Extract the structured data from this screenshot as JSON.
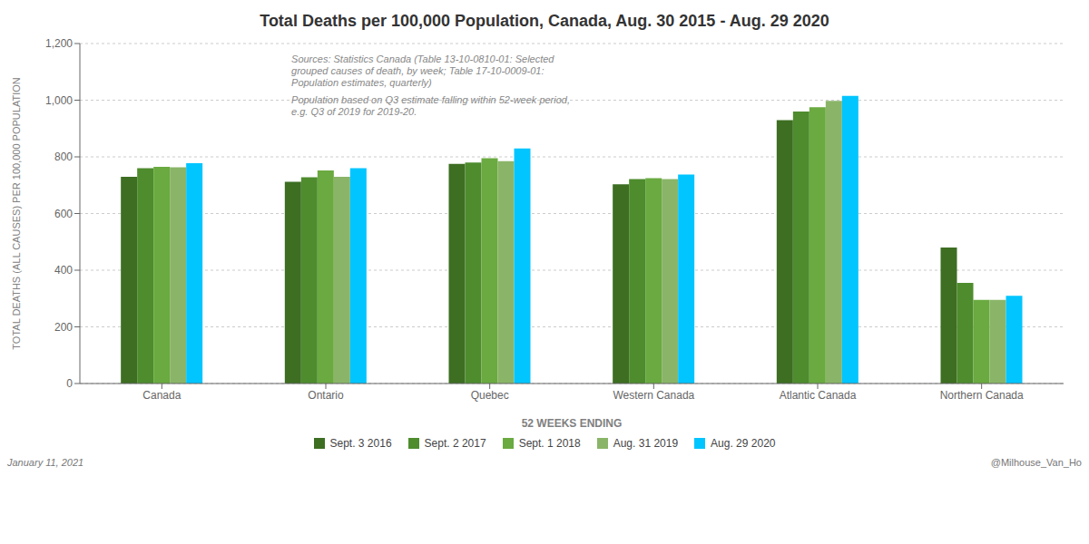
{
  "chart_data": {
    "type": "bar",
    "title": "Total Deaths per 100,000 Population, Canada, Aug. 30 2015 - Aug. 29 2020",
    "x_label": "52 WEEKS ENDING",
    "y_label": "TOTAL DEATHS (ALL CAUSES) PER 100,000 POPULATION",
    "categories": [
      "Canada",
      "Ontario",
      "Quebec",
      "Western Canada",
      "Atlantic Canada",
      "Northern Canada"
    ],
    "series": [
      {
        "name": "Sept. 3 2016",
        "color": "#3d6e22",
        "values": [
          730,
          712,
          775,
          703,
          930,
          480
        ]
      },
      {
        "name": "Sept. 2 2017",
        "color": "#4e8c2e",
        "values": [
          760,
          728,
          780,
          722,
          960,
          355
        ]
      },
      {
        "name": "Sept. 1 2018",
        "color": "#6aaa40",
        "values": [
          765,
          752,
          795,
          725,
          975,
          295
        ]
      },
      {
        "name": "Aug. 31 2019",
        "color": "#8ab568",
        "values": [
          763,
          730,
          785,
          722,
          998,
          295
        ]
      },
      {
        "name": "Aug. 29 2020",
        "color": "#00c5ff",
        "values": [
          778,
          760,
          830,
          738,
          1015,
          310
        ]
      }
    ],
    "ylim": [
      0,
      1200
    ],
    "yticks": [
      0,
      200,
      400,
      600,
      800,
      {
        "value": 1000,
        "label": "1,000"
      },
      {
        "value": 1200,
        "label": "1,200"
      }
    ],
    "grid": true,
    "legend": "bottom",
    "annotations": [
      "Sources: Statistics Canada (Table 13-10-0810-01: Selected\ngrouped causes of death, by week; Table 17-10-0009-01:\nPopulation estimates, quarterly)",
      "Population based on Q3 estimate falling within 52-week period,\ne.g. Q3 of 2019 for 2019-20.",
      "January 11, 2021",
      "@Milhouse_Van_Ho"
    ]
  }
}
